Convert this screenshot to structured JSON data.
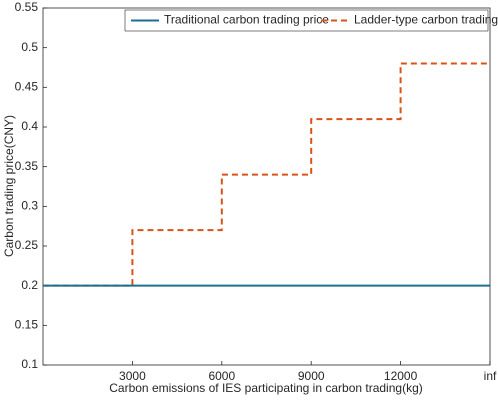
{
  "chart_data": {
    "type": "line",
    "x_label": "Carbon emissions of IES participating in carbon trading(kg)",
    "y_label": "Carbon trading price(CNY)",
    "xlim": [
      0,
      15000
    ],
    "xticks": [
      3000,
      6000,
      9000,
      12000,
      {
        "value": 15000,
        "label": "inf"
      }
    ],
    "ylim": [
      0.1,
      0.55
    ],
    "yticks": [
      0.1,
      0.15,
      0.2,
      0.25,
      0.3,
      0.35,
      0.4,
      0.45,
      0.5,
      0.55
    ],
    "grid": false,
    "legend": "top-right",
    "series": [
      {
        "name": "Traditional carbon trading price",
        "color": "#1b6f93",
        "dash": "solid",
        "x": [
          0,
          15000
        ],
        "values": [
          0.2,
          0.2
        ]
      },
      {
        "name": "Ladder-type carbon trading price",
        "color": "#d95319",
        "dash": "dashed",
        "x": [
          0,
          3000,
          3000,
          6000,
          6000,
          9000,
          9000,
          12000,
          12000,
          15000
        ],
        "values": [
          0.2,
          0.2,
          0.27,
          0.27,
          0.34,
          0.34,
          0.41,
          0.41,
          0.48,
          0.48
        ]
      }
    ]
  }
}
